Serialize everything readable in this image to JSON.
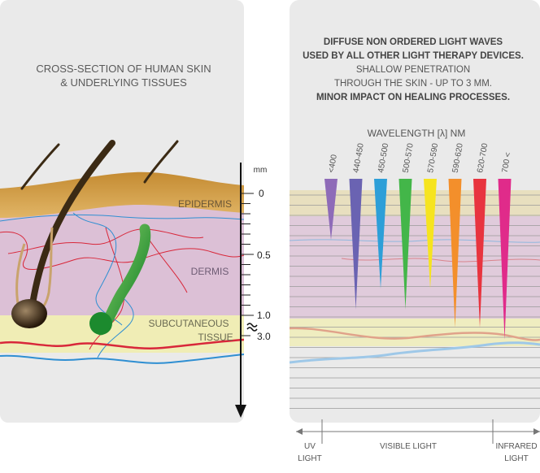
{
  "left_panel": {
    "title_line1": "CROSS-SECTION OF HUMAN SKIN",
    "title_line2": "& UNDERLYING TISSUES",
    "layers": {
      "epidermis": "EPIDERMIS",
      "dermis": "DERMIS",
      "subcutaneous_line1": "SUBCUTANEOUS",
      "subcutaneous_line2": "TISSUE"
    },
    "scale": {
      "unit": "mm",
      "ticks": [
        "0",
        "0.5",
        "1.0",
        "3.0"
      ]
    }
  },
  "right_panel": {
    "desc_line1": "DIFFUSE NON ORDERED LIGHT WAVES",
    "desc_line2": "USED BY ALL OTHER LIGHT THERAPY DEVICES.",
    "desc_line3": "SHALLOW PENETRATION",
    "desc_line4": "THROUGH THE SKIN - UP TO 3 MM.",
    "desc_line5": "MINOR IMPACT ON HEALING PROCESSES.",
    "wavelength_label": "WAVELENGTH [λ] NM",
    "wavelengths": [
      {
        "label": "<400",
        "color": "#8e6bb8",
        "depth": 0.38
      },
      {
        "label": "440-450",
        "color": "#6a63b2",
        "depth": 0.95
      },
      {
        "label": "450-500",
        "color": "#2d9fd8",
        "depth": 0.78
      },
      {
        "label": "500-570",
        "color": "#43b649",
        "depth": 0.95
      },
      {
        "label": "570-590",
        "color": "#f6e41f",
        "depth": 0.78
      },
      {
        "label": "590-620",
        "color": "#f38f2b",
        "depth": 1.1
      },
      {
        "label": "620-700",
        "color": "#e8343f",
        "depth": 1.1
      },
      {
        "label": "700 <",
        "color": "#e02b8a",
        "depth": 1.2
      }
    ],
    "spectrum": {
      "uv_line1": "UV",
      "uv_line2": "LIGHT",
      "visible": "VISIBLE LIGHT",
      "ir_line1": "INFRARED",
      "ir_line2": "LIGHT"
    }
  },
  "colors": {
    "panel_bg": "#eaeaea",
    "epidermis": "#d7a24e",
    "dermis": "#dcc0d6",
    "subcutaneous": "#f0edb5",
    "hair": "#3b2a14",
    "text": "#5a5a5a"
  }
}
